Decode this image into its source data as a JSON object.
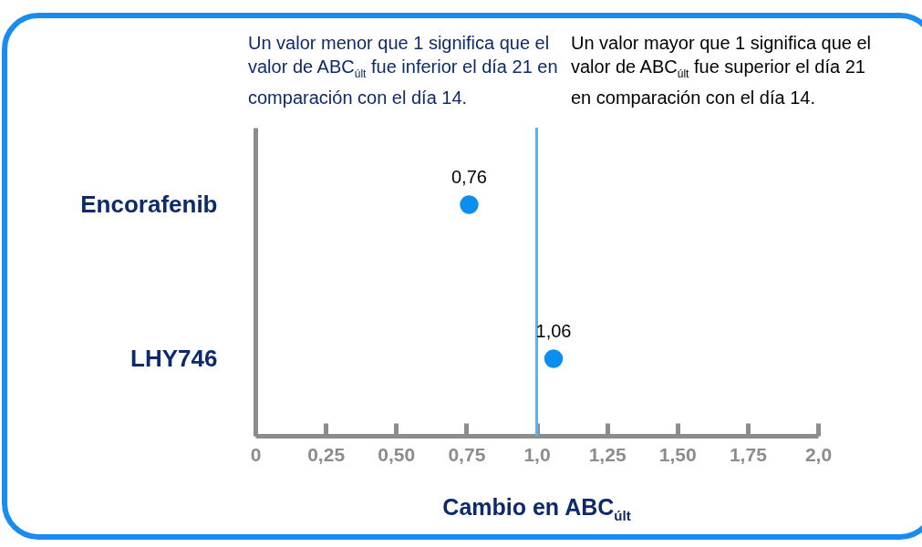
{
  "chart_data": {
    "type": "scatter",
    "categories": [
      "Encorafenib",
      "LHY746"
    ],
    "values": [
      0.76,
      1.06
    ],
    "value_labels": [
      "0,76",
      "1,06"
    ],
    "color": "#0a8ef0",
    "marker": "circle",
    "orientation": "horizontal",
    "xlabel": "Cambio en ABC$_{últ}$",
    "xlim": [
      0,
      2
    ],
    "xticks": [
      0,
      {
        "value": 0.25,
        "label": "0,25"
      },
      {
        "value": 0.5,
        "label": "0,50"
      },
      {
        "value": 0.75,
        "label": "0,75"
      },
      {
        "value": 1,
        "label": "1,0"
      },
      {
        "value": 1.25,
        "label": "1,25"
      },
      {
        "value": 1.5,
        "label": "1,50"
      },
      {
        "value": 1.75,
        "label": "1,75"
      },
      {
        "value": 2,
        "label": "2,0"
      }
    ],
    "ref_lines": [
      {
        "axis": "x",
        "value": 1,
        "color": "#5ab4f0"
      }
    ],
    "grid": false,
    "annotations": [
      "Un valor menor que 1 significa que el valor de ABC$_{últ}$ fue inferior el día 21 en comparación con el día 14.",
      "Un valor mayor que 1 significa que el valor de ABC$_{últ}$ fue superior el día 21 en comparación con el día 14."
    ]
  }
}
